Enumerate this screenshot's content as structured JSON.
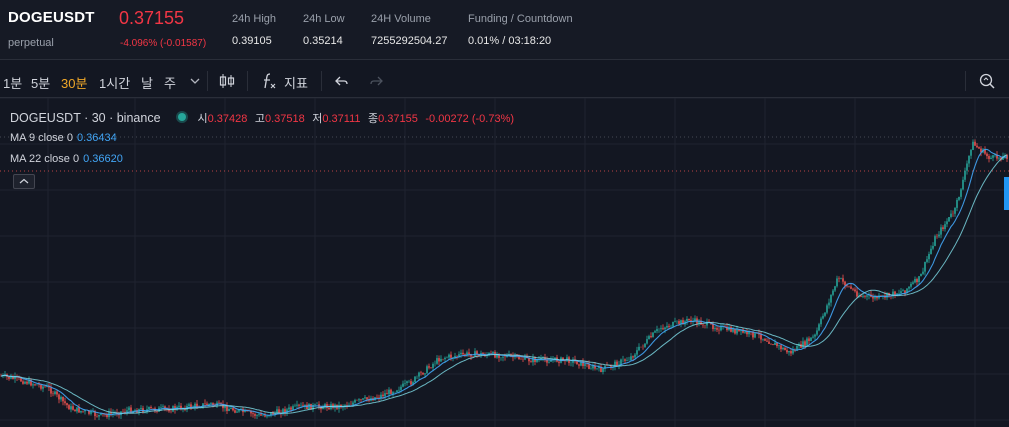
{
  "ticker": {
    "symbol": "DOGEUSDT",
    "subtitle": "perpetual",
    "last_price": "0.37155",
    "change": "-4.096% (-0.01587)",
    "stats": [
      {
        "label": "24h High",
        "value": "0.39105"
      },
      {
        "label": "24h Low",
        "value": "0.35214"
      },
      {
        "label": "24H Volume",
        "value": "7255292504.27"
      },
      {
        "label": "Funding / Countdown",
        "value": "0.01% / 03:18:20"
      }
    ]
  },
  "toolbar": {
    "timeframes": [
      "1분",
      "5분",
      "30분",
      "1시간",
      "날",
      "주"
    ],
    "active_timeframe": "30분",
    "indicators_label": "지표",
    "icons": [
      "chevron-down-icon",
      "candlestick-icon",
      "function-icon",
      "undo-icon",
      "redo-icon",
      "screenshot-icon"
    ]
  },
  "legend": {
    "title": "DOGEUSDT · 30 · binance",
    "ohlc": [
      {
        "label": "시",
        "value": "0.37428"
      },
      {
        "label": "고",
        "value": "0.37518"
      },
      {
        "label": "저",
        "value": "0.37111"
      },
      {
        "label": "종",
        "value": "0.37155"
      }
    ],
    "change": "-0.00272 (-0.73%)",
    "ma": [
      {
        "label": "MA 9 close 0",
        "value": "0.36434"
      },
      {
        "label": "MA 22 close 0",
        "value": "0.36620"
      }
    ],
    "collapse_icon": "^"
  },
  "colors": {
    "background": "#131722",
    "up": "#26a69a",
    "down": "#ef5350",
    "ma_line": "#42a5f5",
    "accent_active": "#f0a829",
    "price_red": "#f23645"
  }
}
